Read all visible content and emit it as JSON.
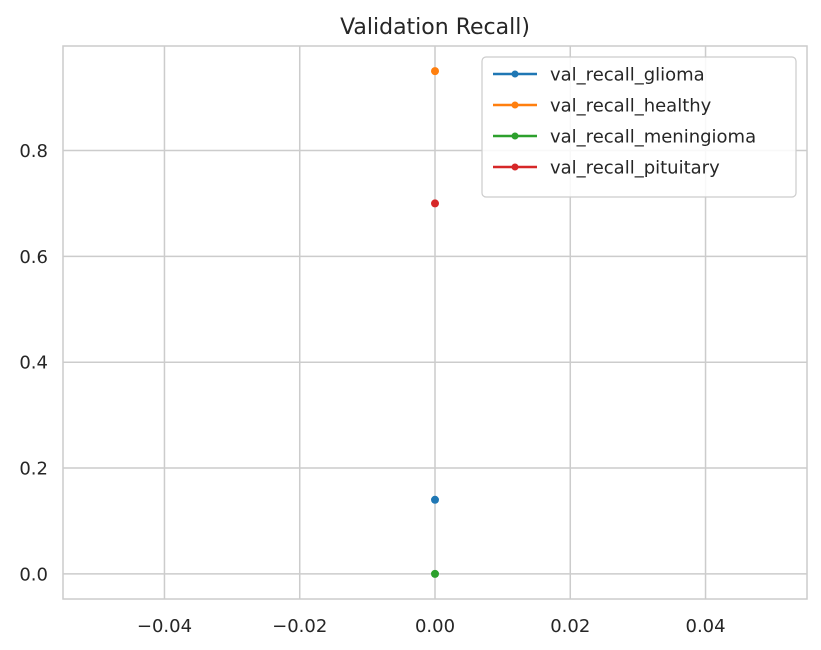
{
  "chart_data": {
    "type": "line",
    "title": "Validation Recall)",
    "xlabel": "",
    "ylabel": "",
    "xlim": [
      -0.055,
      0.055
    ],
    "ylim": [
      -0.0475,
      0.9975
    ],
    "x_ticks": [
      -0.04,
      -0.02,
      0.0,
      0.02,
      0.04
    ],
    "x_tick_labels": [
      "−0.04",
      "−0.02",
      "0.00",
      "0.02",
      "0.04"
    ],
    "y_ticks": [
      0.0,
      0.2,
      0.4,
      0.6,
      0.8
    ],
    "y_tick_labels": [
      "0.0",
      "0.2",
      "0.4",
      "0.6",
      "0.8"
    ],
    "grid": true,
    "legend_position": "top-right",
    "x": [
      0
    ],
    "series": [
      {
        "name": "val_recall_glioma",
        "values": [
          0.14
        ],
        "color": "#1f77b4"
      },
      {
        "name": "val_recall_healthy",
        "values": [
          0.95
        ],
        "color": "#ff7f0e"
      },
      {
        "name": "val_recall_meningioma",
        "values": [
          0.0
        ],
        "color": "#2ca02c"
      },
      {
        "name": "val_recall_pituitary",
        "values": [
          0.7
        ],
        "color": "#d62728"
      }
    ],
    "colors": {
      "grid": "#cccccc",
      "axis_edge": "#cccccc",
      "text": "#262626",
      "background": "#ffffff"
    }
  }
}
